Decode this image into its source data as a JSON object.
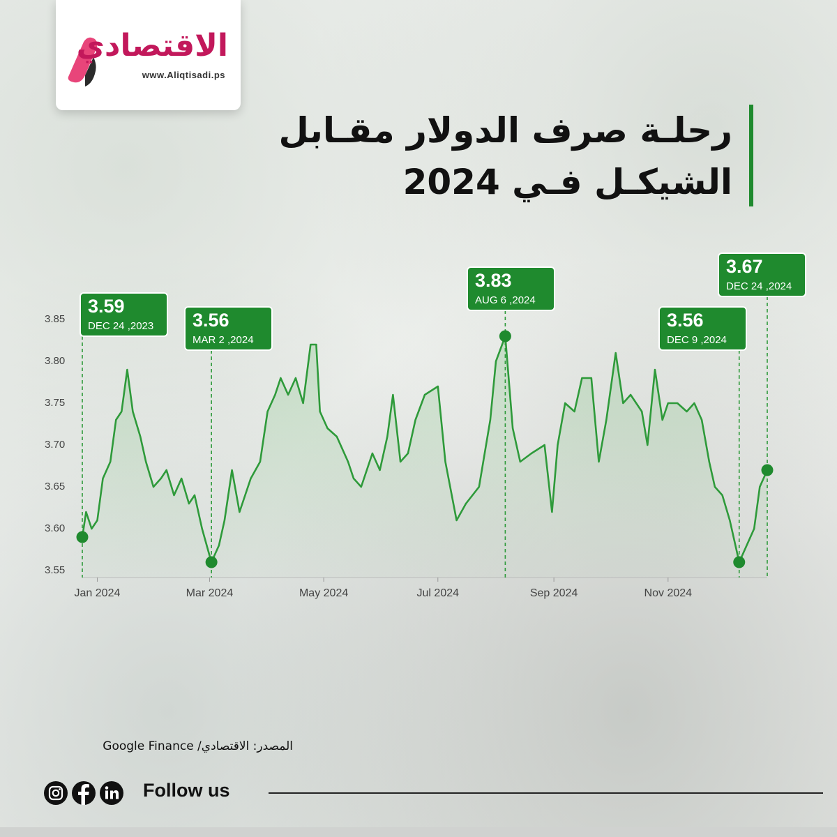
{
  "logo": {
    "name": "الاقتصادي",
    "url": "www.Aliqtisadi.ps"
  },
  "header": {
    "title_lines": [
      "رحلـة صرف الدولار مقـابل",
      "الشيكـل فـي 2024"
    ]
  },
  "footer": {
    "source": "المصدر: الاقتصادي/ Google Finance",
    "follow": "Follow us"
  },
  "chart_data": {
    "type": "line",
    "color": "#2e9a3a",
    "xlim": [
      "2023-12-24",
      "2024-12-24"
    ],
    "xticks": [
      {
        "value": "2024-01-01",
        "label": "Jan 2024"
      },
      {
        "value": "2024-03-01",
        "label": "Mar 2024"
      },
      {
        "value": "2024-05-01",
        "label": "May 2024"
      },
      {
        "value": "2024-07-01",
        "label": "Jul 2024"
      },
      {
        "value": "2024-09-01",
        "label": "Sep 2024"
      },
      {
        "value": "2024-11-01",
        "label": "Nov 2024"
      }
    ],
    "ylim": [
      3.55,
      3.85
    ],
    "yticks": [
      3.55,
      {
        "value": 3.6,
        "label": "3.60"
      },
      3.65,
      {
        "value": 3.7,
        "label": "3.70"
      },
      3.75,
      {
        "value": 3.8,
        "label": "3.80"
      },
      3.85
    ],
    "grid": false,
    "x": [
      "2023-12-24",
      "2023-12-26",
      "2023-12-29",
      "2024-01-01",
      "2024-01-04",
      "2024-01-08",
      "2024-01-11",
      "2024-01-14",
      "2024-01-17",
      "2024-01-20",
      "2024-01-24",
      "2024-01-27",
      "2024-01-31",
      "2024-02-04",
      "2024-02-07",
      "2024-02-11",
      "2024-02-15",
      "2024-02-19",
      "2024-02-22",
      "2024-02-26",
      "2024-03-02",
      "2024-03-06",
      "2024-03-09",
      "2024-03-13",
      "2024-03-17",
      "2024-03-23",
      "2024-03-28",
      "2024-04-01",
      "2024-04-05",
      "2024-04-08",
      "2024-04-12",
      "2024-04-16",
      "2024-04-20",
      "2024-04-24",
      "2024-04-27",
      "2024-04-29",
      "2024-05-03",
      "2024-05-08",
      "2024-05-14",
      "2024-05-17",
      "2024-05-21",
      "2024-05-27",
      "2024-05-31",
      "2024-06-04",
      "2024-06-07",
      "2024-06-11",
      "2024-06-15",
      "2024-06-19",
      "2024-06-24",
      "2024-07-01",
      "2024-07-05",
      "2024-07-11",
      "2024-07-16",
      "2024-07-23",
      "2024-07-29",
      "2024-08-01",
      "2024-08-06",
      "2024-08-10",
      "2024-08-14",
      "2024-08-20",
      "2024-08-27",
      "2024-08-31",
      "2024-09-03",
      "2024-09-07",
      "2024-09-12",
      "2024-09-16",
      "2024-09-21",
      "2024-09-25",
      "2024-09-29",
      "2024-10-04",
      "2024-10-08",
      "2024-10-12",
      "2024-10-18",
      "2024-10-21",
      "2024-10-25",
      "2024-10-29",
      "2024-11-01",
      "2024-11-06",
      "2024-11-11",
      "2024-11-15",
      "2024-11-19",
      "2024-11-23",
      "2024-11-26",
      "2024-11-30",
      "2024-12-04",
      "2024-12-09",
      "2024-12-13",
      "2024-12-17",
      "2024-12-20",
      "2024-12-24"
    ],
    "values": [
      3.59,
      3.62,
      3.6,
      3.61,
      3.66,
      3.68,
      3.73,
      3.74,
      3.79,
      3.74,
      3.71,
      3.68,
      3.65,
      3.66,
      3.67,
      3.64,
      3.66,
      3.63,
      3.64,
      3.6,
      3.56,
      3.58,
      3.61,
      3.67,
      3.62,
      3.66,
      3.68,
      3.74,
      3.76,
      3.78,
      3.76,
      3.78,
      3.75,
      3.82,
      3.82,
      3.74,
      3.72,
      3.71,
      3.68,
      3.66,
      3.65,
      3.69,
      3.67,
      3.71,
      3.76,
      3.68,
      3.69,
      3.73,
      3.76,
      3.77,
      3.68,
      3.61,
      3.63,
      3.65,
      3.73,
      3.8,
      3.83,
      3.72,
      3.68,
      3.69,
      3.7,
      3.62,
      3.7,
      3.75,
      3.74,
      3.78,
      3.78,
      3.68,
      3.73,
      3.81,
      3.75,
      3.76,
      3.74,
      3.7,
      3.79,
      3.73,
      3.75,
      3.75,
      3.74,
      3.75,
      3.73,
      3.68,
      3.65,
      3.64,
      3.61,
      3.56,
      3.58,
      3.6,
      3.65,
      3.67
    ],
    "annotations": [
      {
        "x": "2023-12-24",
        "value": 3.59,
        "date": "DEC 24 ,2023"
      },
      {
        "x": "2024-03-02",
        "value": 3.56,
        "date": "MAR 2 ,2024"
      },
      {
        "x": "2024-08-06",
        "value": 3.83,
        "date": "AUG 6 ,2024"
      },
      {
        "x": "2024-12-09",
        "value": 3.56,
        "date": "DEC 9 ,2024"
      },
      {
        "x": "2024-12-24",
        "value": 3.67,
        "date": "DEC 24 ,2024"
      }
    ]
  }
}
